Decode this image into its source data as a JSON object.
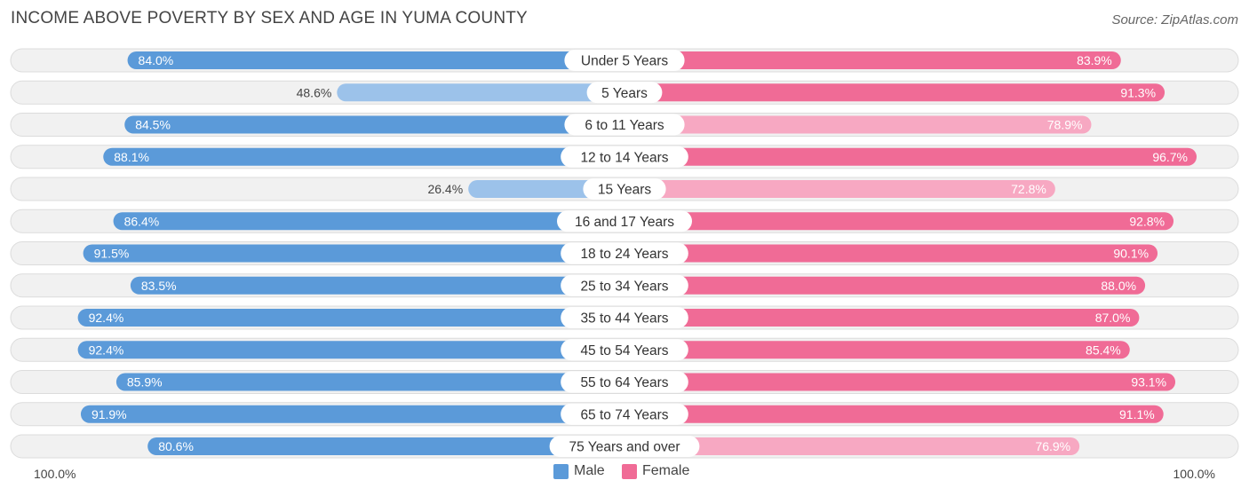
{
  "header": {
    "title": "INCOME ABOVE POVERTY BY SEX AND AGE IN YUMA COUNTY",
    "source": "Source: ZipAtlas.com"
  },
  "colors": {
    "male_strong": "#5b9ad9",
    "male_light": "#9cc2ea",
    "female_strong": "#f06b96",
    "female_light": "#f7a8c2",
    "row_bg": "#f1f1f1",
    "row_border": "#dcdcdc"
  },
  "chart_data": {
    "type": "bar",
    "orientation": "horizontal-diverging",
    "title": "INCOME ABOVE POVERTY BY SEX AND AGE IN YUMA COUNTY",
    "categories": [
      "Under 5 Years",
      "5 Years",
      "6 to 11 Years",
      "12 to 14 Years",
      "15 Years",
      "16 and 17 Years",
      "18 to 24 Years",
      "25 to 34 Years",
      "35 to 44 Years",
      "45 to 54 Years",
      "55 to 64 Years",
      "65 to 74 Years",
      "75 Years and over"
    ],
    "series": [
      {
        "name": "Male",
        "values": [
          84.0,
          48.6,
          84.5,
          88.1,
          26.4,
          86.4,
          91.5,
          83.5,
          92.4,
          92.4,
          85.9,
          91.9,
          80.6
        ],
        "labels": [
          "84.0%",
          "48.6%",
          "84.5%",
          "88.1%",
          "26.4%",
          "86.4%",
          "91.5%",
          "83.5%",
          "92.4%",
          "92.4%",
          "85.9%",
          "91.9%",
          "80.6%"
        ]
      },
      {
        "name": "Female",
        "values": [
          83.9,
          91.3,
          78.9,
          96.7,
          72.8,
          92.8,
          90.1,
          88.0,
          87.0,
          85.4,
          93.1,
          91.1,
          76.9
        ],
        "labels": [
          "83.9%",
          "91.3%",
          "78.9%",
          "96.7%",
          "72.8%",
          "92.8%",
          "90.1%",
          "88.0%",
          "87.0%",
          "85.4%",
          "93.1%",
          "91.1%",
          "76.9%"
        ]
      }
    ],
    "xlim": [
      0,
      100
    ],
    "axis_left_label": "100.0%",
    "axis_right_label": "100.0%",
    "legend_position": "bottom-center"
  }
}
